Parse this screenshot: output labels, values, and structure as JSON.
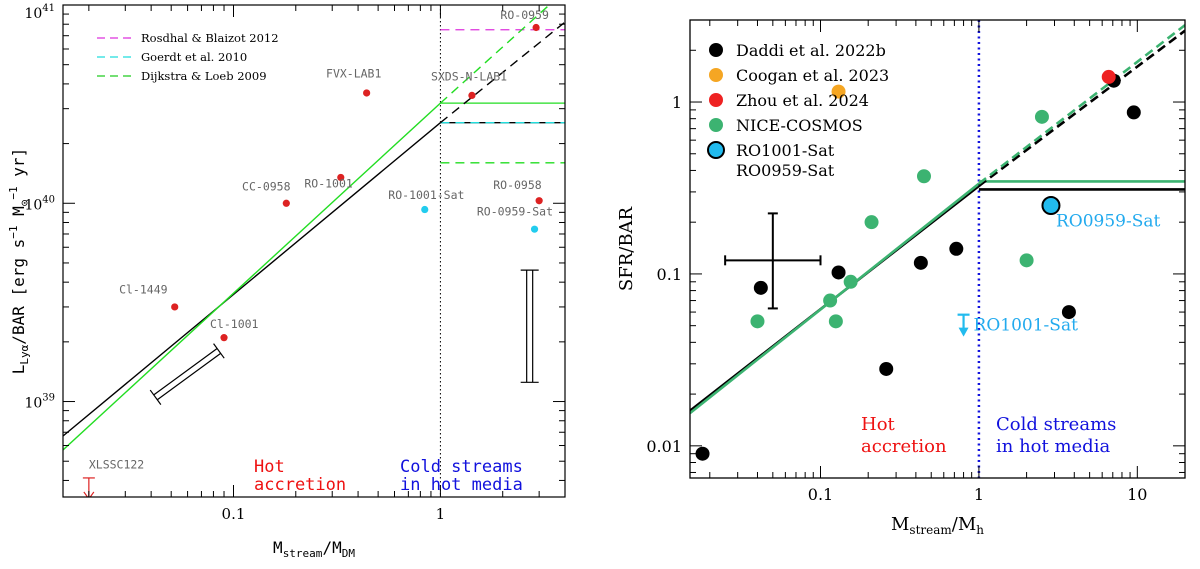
{
  "chart_data": [
    {
      "type": "scatter",
      "xlabel_main": "M",
      "xlabel_sub": "stream",
      "xlabel_slash": "/M",
      "xlabel_sub2": "DM",
      "ylabel_main": "L",
      "ylabel_sub": "Lyα",
      "ylabel_rest": "/BAR [erg s",
      "ylabel_m1": "−1",
      "ylabel_M": " M",
      "ylabel_sun": "⊙",
      "ylabel_m2": "−1",
      "ylabel_yr": " yr]",
      "xscale": "log",
      "yscale": "log",
      "xlim": [
        0.015,
        4.0
      ],
      "ylim": [
        3.3e+38,
        1e+41
      ],
      "xticks": [
        {
          "v": 0.1,
          "label": "0.1"
        },
        {
          "v": 1,
          "label": "1"
        }
      ],
      "yticks": [
        {
          "v": 1e+39,
          "base": "10",
          "exp": "39"
        },
        {
          "v": 1e+40,
          "base": "10",
          "exp": "40"
        },
        {
          "v": 1e+41,
          "base": "10",
          "exp": "41"
        }
      ],
      "divider_x": 1,
      "region_left": [
        "Hot",
        "accretion"
      ],
      "region_right": [
        "Cold streams",
        "in hot media"
      ],
      "legend": [
        {
          "label": "Rosdhal & Blaizot 2012",
          "color": "#dd33dd"
        },
        {
          "label": "Goerdt et al. 2010",
          "color": "#22dddd"
        },
        {
          "label": "Dijkstra & Loeb 2009",
          "color": "#22cc22"
        }
      ],
      "lines": [
        {
          "color": "#000000",
          "x0": 0.015,
          "y0": 6.7e+38,
          "x1": 1.0,
          "y1": 2.55e+40
        },
        {
          "color": "#22dd22",
          "x0": 0.015,
          "y0": 5.7e+38,
          "x1": 1.0,
          "y1": 3.2e+40
        }
      ],
      "extensions": [
        {
          "color": "#000000",
          "x0": 1.0,
          "y0": 2.55e+40,
          "x1": 4.0,
          "y1": 8.2e+40
        },
        {
          "color": "#22dd22",
          "x0": 1.0,
          "y0": 3.2e+40,
          "x1": 4.0,
          "y1": 1.18e+41
        }
      ],
      "plateaus": [
        {
          "color": "#22dd22",
          "y": 3.2e+40,
          "dashed": false
        },
        {
          "color": "#000000",
          "y": 2.55e+40,
          "dashed": false
        },
        {
          "color": "#22dddd",
          "y": 2.55e+40,
          "dashed": true
        },
        {
          "color": "#dd33dd",
          "y": 7.5e+40,
          "dashed": true
        },
        {
          "color": "#22dd22",
          "y": 1.6e+40,
          "dashed": true
        }
      ],
      "points": [
        {
          "name": "XLSSC122",
          "x": 0.02,
          "y": 3.5e+38,
          "color": "#dd2222",
          "upper": true,
          "lx": 0.02,
          "ly": 4.6e+38,
          "anchor": "start"
        },
        {
          "name": "Cl-1449",
          "x": 0.052,
          "y": 3e+39,
          "color": "#dd2222",
          "lx": 0.028,
          "ly": 3.5e+39,
          "anchor": "start"
        },
        {
          "name": "Cl-1001",
          "x": 0.09,
          "y": 2.1e+39,
          "color": "#dd2222",
          "lx": 0.077,
          "ly": 2.35e+39,
          "anchor": "start"
        },
        {
          "name": "CC-0958",
          "x": 0.18,
          "y": 1e+40,
          "color": "#dd2222",
          "lx": 0.11,
          "ly": 1.16e+40,
          "anchor": "start"
        },
        {
          "name": "RO-1001",
          "x": 0.33,
          "y": 1.35e+40,
          "color": "#dd2222",
          "lx": 0.22,
          "ly": 1.2e+40,
          "anchor": "start"
        },
        {
          "name": "FVX-LAB1",
          "x": 0.44,
          "y": 3.6e+40,
          "color": "#dd2222",
          "lx": 0.28,
          "ly": 4.3e+40,
          "anchor": "start"
        },
        {
          "name": "SXDS-N-LAB1",
          "x": 1.42,
          "y": 3.5e+40,
          "color": "#dd2222",
          "lx": 0.9,
          "ly": 4.15e+40,
          "anchor": "start"
        },
        {
          "name": "RO-0959",
          "x": 2.9,
          "y": 7.7e+40,
          "color": "#dd2222",
          "lx": 1.95,
          "ly": 8.5e+40,
          "anchor": "start"
        },
        {
          "name": "RO-0958",
          "x": 3.0,
          "y": 1.03e+40,
          "color": "#dd2222",
          "lx": 1.8,
          "ly": 1.18e+40,
          "anchor": "start"
        },
        {
          "name": "RO-1001-Sat",
          "x": 0.84,
          "y": 9.3e+39,
          "color": "#22ccee",
          "lx": 0.56,
          "ly": 1.05e+40,
          "anchor": "start"
        },
        {
          "name": "RO-0959-Sat",
          "x": 2.85,
          "y": 7.4e+39,
          "color": "#22ccee",
          "lx": 1.5,
          "ly": 8.7e+39,
          "anchor": "start"
        }
      ],
      "scale_bars": [
        {
          "x0": 0.042,
          "y0": 1.05e+39,
          "x1": 0.085,
          "y1": 1.8e+39
        },
        {
          "x0": 2.7,
          "y0": 1.25e+39,
          "x1": 2.7,
          "y1": 4.6e+39
        }
      ]
    },
    {
      "type": "scatter",
      "xlabel_main": "M",
      "xlabel_sub": "stream",
      "xlabel_slash": "/M",
      "xlabel_sub2": "h",
      "ylabel": "SFR/BAR",
      "xscale": "log",
      "yscale": "log",
      "xlim": [
        0.015,
        20
      ],
      "ylim": [
        0.0065,
        3.0
      ],
      "xticks": [
        {
          "v": 0.1,
          "label": "0.1"
        },
        {
          "v": 1,
          "label": "1"
        },
        {
          "v": 10,
          "label": "10"
        }
      ],
      "yticks": [
        {
          "v": 0.01,
          "label": "0.01"
        },
        {
          "v": 0.1,
          "label": "0.1"
        },
        {
          "v": 1,
          "label": "1"
        }
      ],
      "divider_x": 1,
      "region_left": [
        "Hot",
        "accretion"
      ],
      "region_right": [
        "Cold streams",
        "in hot media"
      ],
      "legend": [
        {
          "label": "Daddi et al. 2022b",
          "color": "#000000"
        },
        {
          "label": "Coogan et al. 2023",
          "color": "#f5a623"
        },
        {
          "label": "Zhou et al. 2024",
          "color": "#ee2222"
        },
        {
          "label": "NICE-COSMOS",
          "color": "#3cb371"
        },
        {
          "label": "RO1001-Sat",
          "label2": "RO0959-Sat",
          "color": "#22bbee",
          "outlined": true
        }
      ],
      "lines": [
        {
          "color": "#000000",
          "x0": 0.015,
          "y0": 0.016,
          "x1": 1.0,
          "y1": 0.325
        },
        {
          "color": "#3cb371",
          "x0": 0.015,
          "y0": 0.0155,
          "x1": 1.0,
          "y1": 0.335
        }
      ],
      "extensions": [
        {
          "color": "#000000",
          "x0": 1.0,
          "y0": 0.325,
          "x1": 20,
          "y1": 2.6
        },
        {
          "color": "#3cb371",
          "x0": 1.0,
          "y0": 0.335,
          "x1": 20,
          "y1": 2.8
        }
      ],
      "plateaus": [
        {
          "color": "#3cb371",
          "y": 0.345,
          "dashed": false
        },
        {
          "color": "#000000",
          "y": 0.31,
          "dashed": false
        }
      ],
      "error_cross": {
        "x": 0.05,
        "y": 0.12,
        "xlo": 0.025,
        "xhi": 0.1,
        "ylo": 0.063,
        "yhi": 0.225
      },
      "points_black": [
        {
          "x": 0.018,
          "y": 0.009
        },
        {
          "x": 0.042,
          "y": 0.083
        },
        {
          "x": 0.13,
          "y": 0.102
        },
        {
          "x": 0.26,
          "y": 0.028
        },
        {
          "x": 0.43,
          "y": 0.116
        },
        {
          "x": 0.72,
          "y": 0.14
        },
        {
          "x": 3.7,
          "y": 0.06
        },
        {
          "x": 7.1,
          "y": 1.33
        },
        {
          "x": 9.5,
          "y": 0.87
        }
      ],
      "points_orange": [
        {
          "x": 0.13,
          "y": 1.15
        }
      ],
      "points_red": [
        {
          "x": 6.6,
          "y": 1.4
        }
      ],
      "points_green": [
        {
          "x": 0.04,
          "y": 0.053
        },
        {
          "x": 0.115,
          "y": 0.07
        },
        {
          "x": 0.125,
          "y": 0.053
        },
        {
          "x": 0.155,
          "y": 0.09
        },
        {
          "x": 0.21,
          "y": 0.2
        },
        {
          "x": 0.45,
          "y": 0.37
        },
        {
          "x": 2.0,
          "y": 0.12
        },
        {
          "x": 2.5,
          "y": 0.82
        }
      ],
      "points_sat": [
        {
          "name": "RO0959-Sat",
          "x": 2.85,
          "y": 0.25
        },
        {
          "name": "RO1001-Sat",
          "x": 0.8,
          "y": 0.05,
          "upper": true
        }
      ]
    }
  ]
}
